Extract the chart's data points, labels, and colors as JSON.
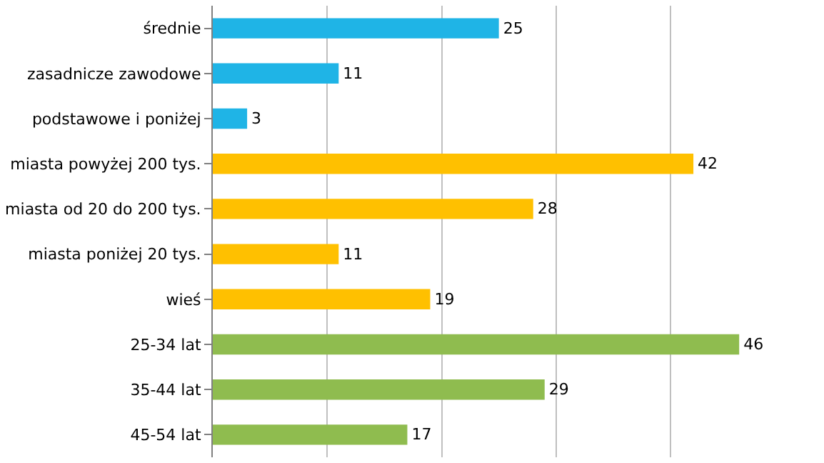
{
  "chart_data": {
    "type": "bar",
    "orientation": "horizontal",
    "categories": [
      "średnie",
      "zasadnicze zawodowe",
      "podstawowe i poniżej",
      "miasta powyżej 200 tys.",
      "miasta od 20 do 200 tys.",
      "miasta poniżej 20 tys.",
      "wieś",
      "25-34 lat",
      "35-44 lat",
      "45-54 lat"
    ],
    "values": [
      25,
      11,
      3,
      42,
      28,
      11,
      19,
      46,
      29,
      17
    ],
    "colors": [
      "#1fb4e6",
      "#1fb4e6",
      "#1fb4e6",
      "#ffc000",
      "#ffc000",
      "#ffc000",
      "#ffc000",
      "#8fbc4f",
      "#8fbc4f",
      "#8fbc4f"
    ],
    "data_labels": true,
    "grid": "x",
    "legend": false,
    "tick_labels": "y"
  }
}
